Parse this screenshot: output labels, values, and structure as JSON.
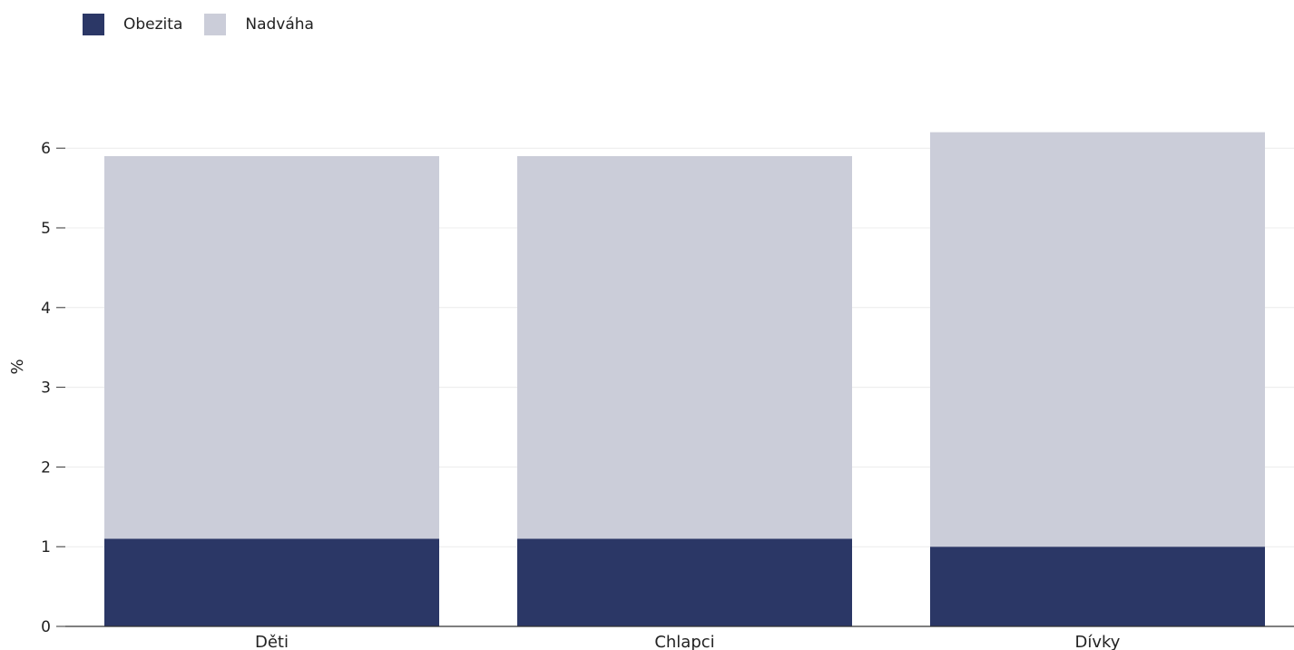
{
  "chart_data": {
    "type": "bar",
    "stacked": true,
    "categories": [
      "Děti",
      "Chlapci",
      "Dívky"
    ],
    "series": [
      {
        "name": "Obezita",
        "values": [
          1.1,
          1.1,
          1.0
        ],
        "color": "#2b3766"
      },
      {
        "name": "Nadváha",
        "values": [
          4.8,
          4.8,
          5.2
        ],
        "color": "#cbcdd9"
      }
    ],
    "ylabel": "%",
    "ylim": [
      0,
      6.3
    ],
    "yticks": [
      0,
      1,
      2,
      3,
      4,
      5,
      6
    ],
    "grid": true,
    "legend_position": "top-left"
  }
}
